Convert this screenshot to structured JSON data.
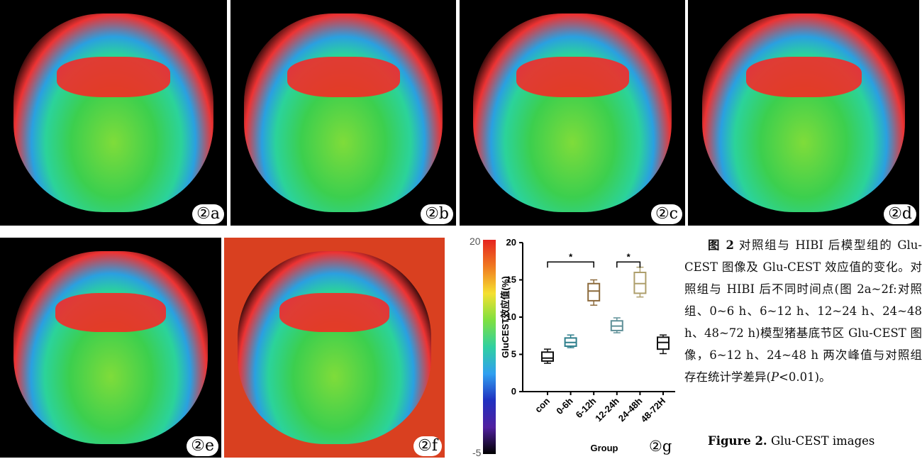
{
  "panels": [
    {
      "label": "②a"
    },
    {
      "label": "②b"
    },
    {
      "label": "②c"
    },
    {
      "label": "②d"
    },
    {
      "label": "②e"
    },
    {
      "label": "②f"
    }
  ],
  "colorbar": {
    "max": "20",
    "min": "-5"
  },
  "chart_data": {
    "type": "box",
    "panel_label": "②g",
    "y_label": "GluCEST效应值(%)",
    "x_label": "Group",
    "categories": [
      "con",
      "0-6h",
      "6-12h",
      "12-24h",
      "24-48h",
      "48-72H"
    ],
    "boxes": [
      {
        "min": 3.8,
        "q1": 4.1,
        "median": 4.5,
        "q3": 5.3,
        "max": 5.7,
        "color": "#111111"
      },
      {
        "min": 5.9,
        "q1": 6.1,
        "median": 6.6,
        "q3": 7.2,
        "max": 7.6,
        "color": "#2f7f8c"
      },
      {
        "min": 11.6,
        "q1": 12.2,
        "median": 13.5,
        "q3": 14.5,
        "max": 15.0,
        "color": "#8c6a3c"
      },
      {
        "min": 7.9,
        "q1": 8.2,
        "median": 8.8,
        "q3": 9.5,
        "max": 9.9,
        "color": "#5f9098"
      },
      {
        "min": 12.7,
        "q1": 13.2,
        "median": 14.5,
        "q3": 16.0,
        "max": 16.7,
        "color": "#ae9f6c"
      },
      {
        "min": 5.1,
        "q1": 5.7,
        "median": 6.6,
        "q3": 7.3,
        "max": 7.6,
        "color": "#111111"
      }
    ],
    "ylim": [
      0,
      20
    ],
    "yticks": [
      0,
      5,
      10,
      15,
      20
    ],
    "annotations": [
      {
        "label": "*",
        "between": [
          "con",
          "6-12h"
        ],
        "y": 17.4
      },
      {
        "label": "*",
        "between": [
          "12-24h",
          "24-48h"
        ],
        "y": 17.4
      }
    ]
  },
  "caption": {
    "zh_label": "图 2",
    "zh_text": "对照组与 HIBI 后模型组的 Glu-CEST 图像及 Glu-CEST 效应值的变化。对照组与 HIBI 后不同时间点(图 2a~2f:对照组、0~6 h、6~12 h、12~24 h、24~48 h、48~72 h)模型猪基底节区 Glu-CEST 图像，6~12 h、24~48 h 两次峰值与对照组存在统计学差异(",
    "p": "P",
    "zh_end": "<0.01)。",
    "en_label": "Figure 2.",
    "en_text": "Glu-CEST images"
  }
}
